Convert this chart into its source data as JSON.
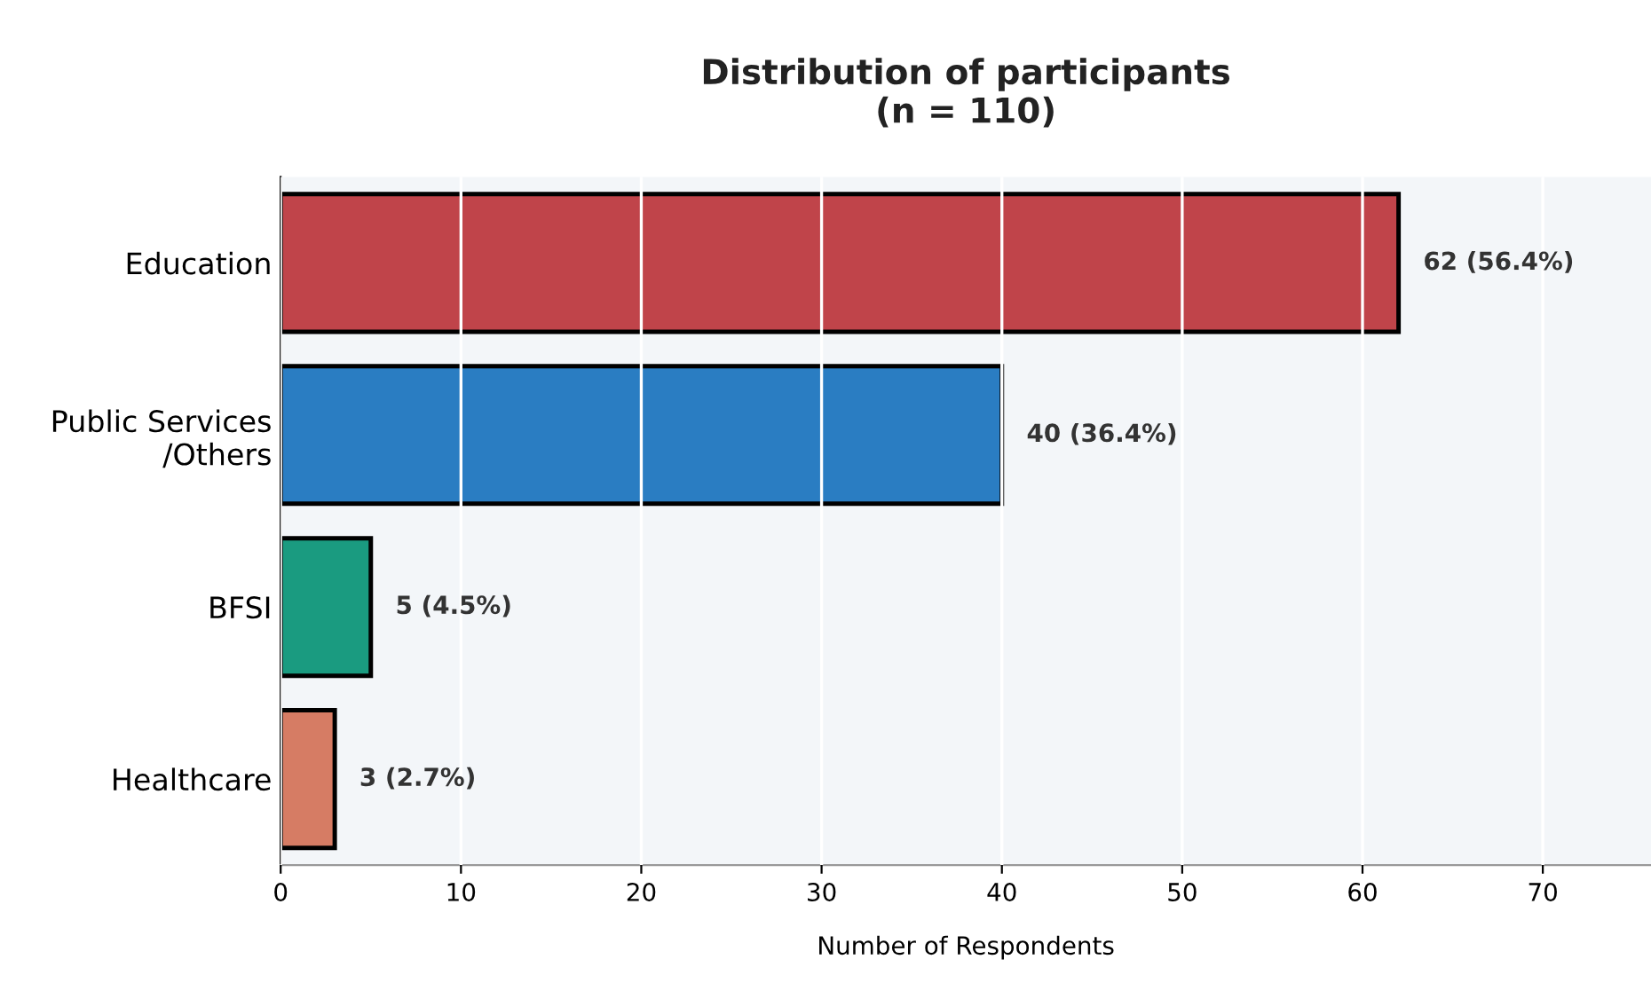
{
  "chart_data": {
    "type": "bar",
    "orientation": "horizontal",
    "title": "Distribution of participants\n(n = 110)",
    "xlabel": "Number of Respondents",
    "categories": [
      "Education",
      "Public Services\n/Others",
      "BFSI",
      "Healthcare"
    ],
    "values": [
      62,
      40,
      5,
      3
    ],
    "colors": [
      "#c0444a",
      "#2a7dc2",
      "#1a9b80",
      "#d67c64"
    ],
    "value_labels": [
      "62 (56.4%)",
      "40 (36.4%)",
      "5 (4.5%)",
      "3 (2.7%)"
    ],
    "xlim": [
      0,
      76
    ],
    "xticks": [
      0,
      10,
      20,
      30,
      40,
      50,
      60,
      70
    ],
    "grid": "x"
  }
}
